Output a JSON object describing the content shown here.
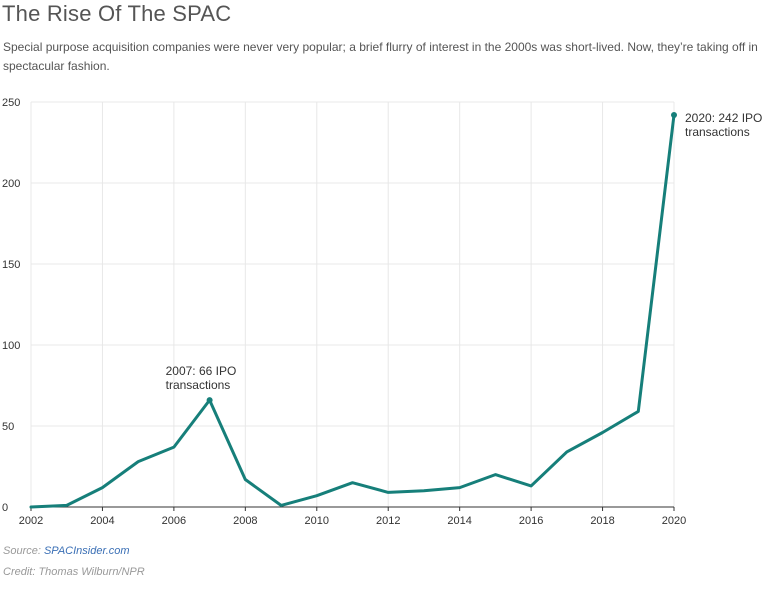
{
  "header": {
    "title": "The Rise Of The SPAC",
    "subtitle": "Special purpose acquisition companies were never very popular; a brief flurry of interest in the 2000s was short-lived. Now, they’re taking off in spectacular fashion."
  },
  "footer": {
    "source_prefix": "Source: ",
    "source_link": "SPACInsider.com",
    "credit": "Credit: Thomas Wilburn/NPR"
  },
  "colors": {
    "line": "#167f7a",
    "grid": "#e8e8e8",
    "axis": "#333333"
  },
  "chart_data": {
    "type": "line",
    "title": "The Rise Of The SPAC",
    "xlabel": "",
    "ylabel": "",
    "xlim": [
      2002,
      2020
    ],
    "ylim": [
      0,
      250
    ],
    "x_ticks": [
      2002,
      2004,
      2006,
      2008,
      2010,
      2012,
      2014,
      2016,
      2018,
      2020
    ],
    "y_ticks": [
      0,
      50,
      100,
      150,
      200,
      250
    ],
    "grid": true,
    "series": [
      {
        "x": [
          2002,
          2003,
          2004,
          2005,
          2006,
          2007,
          2008,
          2009,
          2010,
          2011,
          2012,
          2013,
          2014,
          2015,
          2016,
          2017,
          2018,
          2019,
          2020
        ],
        "values": [
          0,
          1,
          12,
          28,
          37,
          66,
          17,
          1,
          7,
          15,
          9,
          10,
          12,
          20,
          13,
          34,
          46,
          59,
          242
        ]
      }
    ],
    "annotations": [
      {
        "x": 2007,
        "y": 66,
        "line1": "2007: 66 IPO",
        "line2": "transactions",
        "position": "above"
      },
      {
        "x": 2020,
        "y": 242,
        "line1": "2020: 242 IPO",
        "line2": "transactions",
        "position": "right"
      }
    ]
  }
}
